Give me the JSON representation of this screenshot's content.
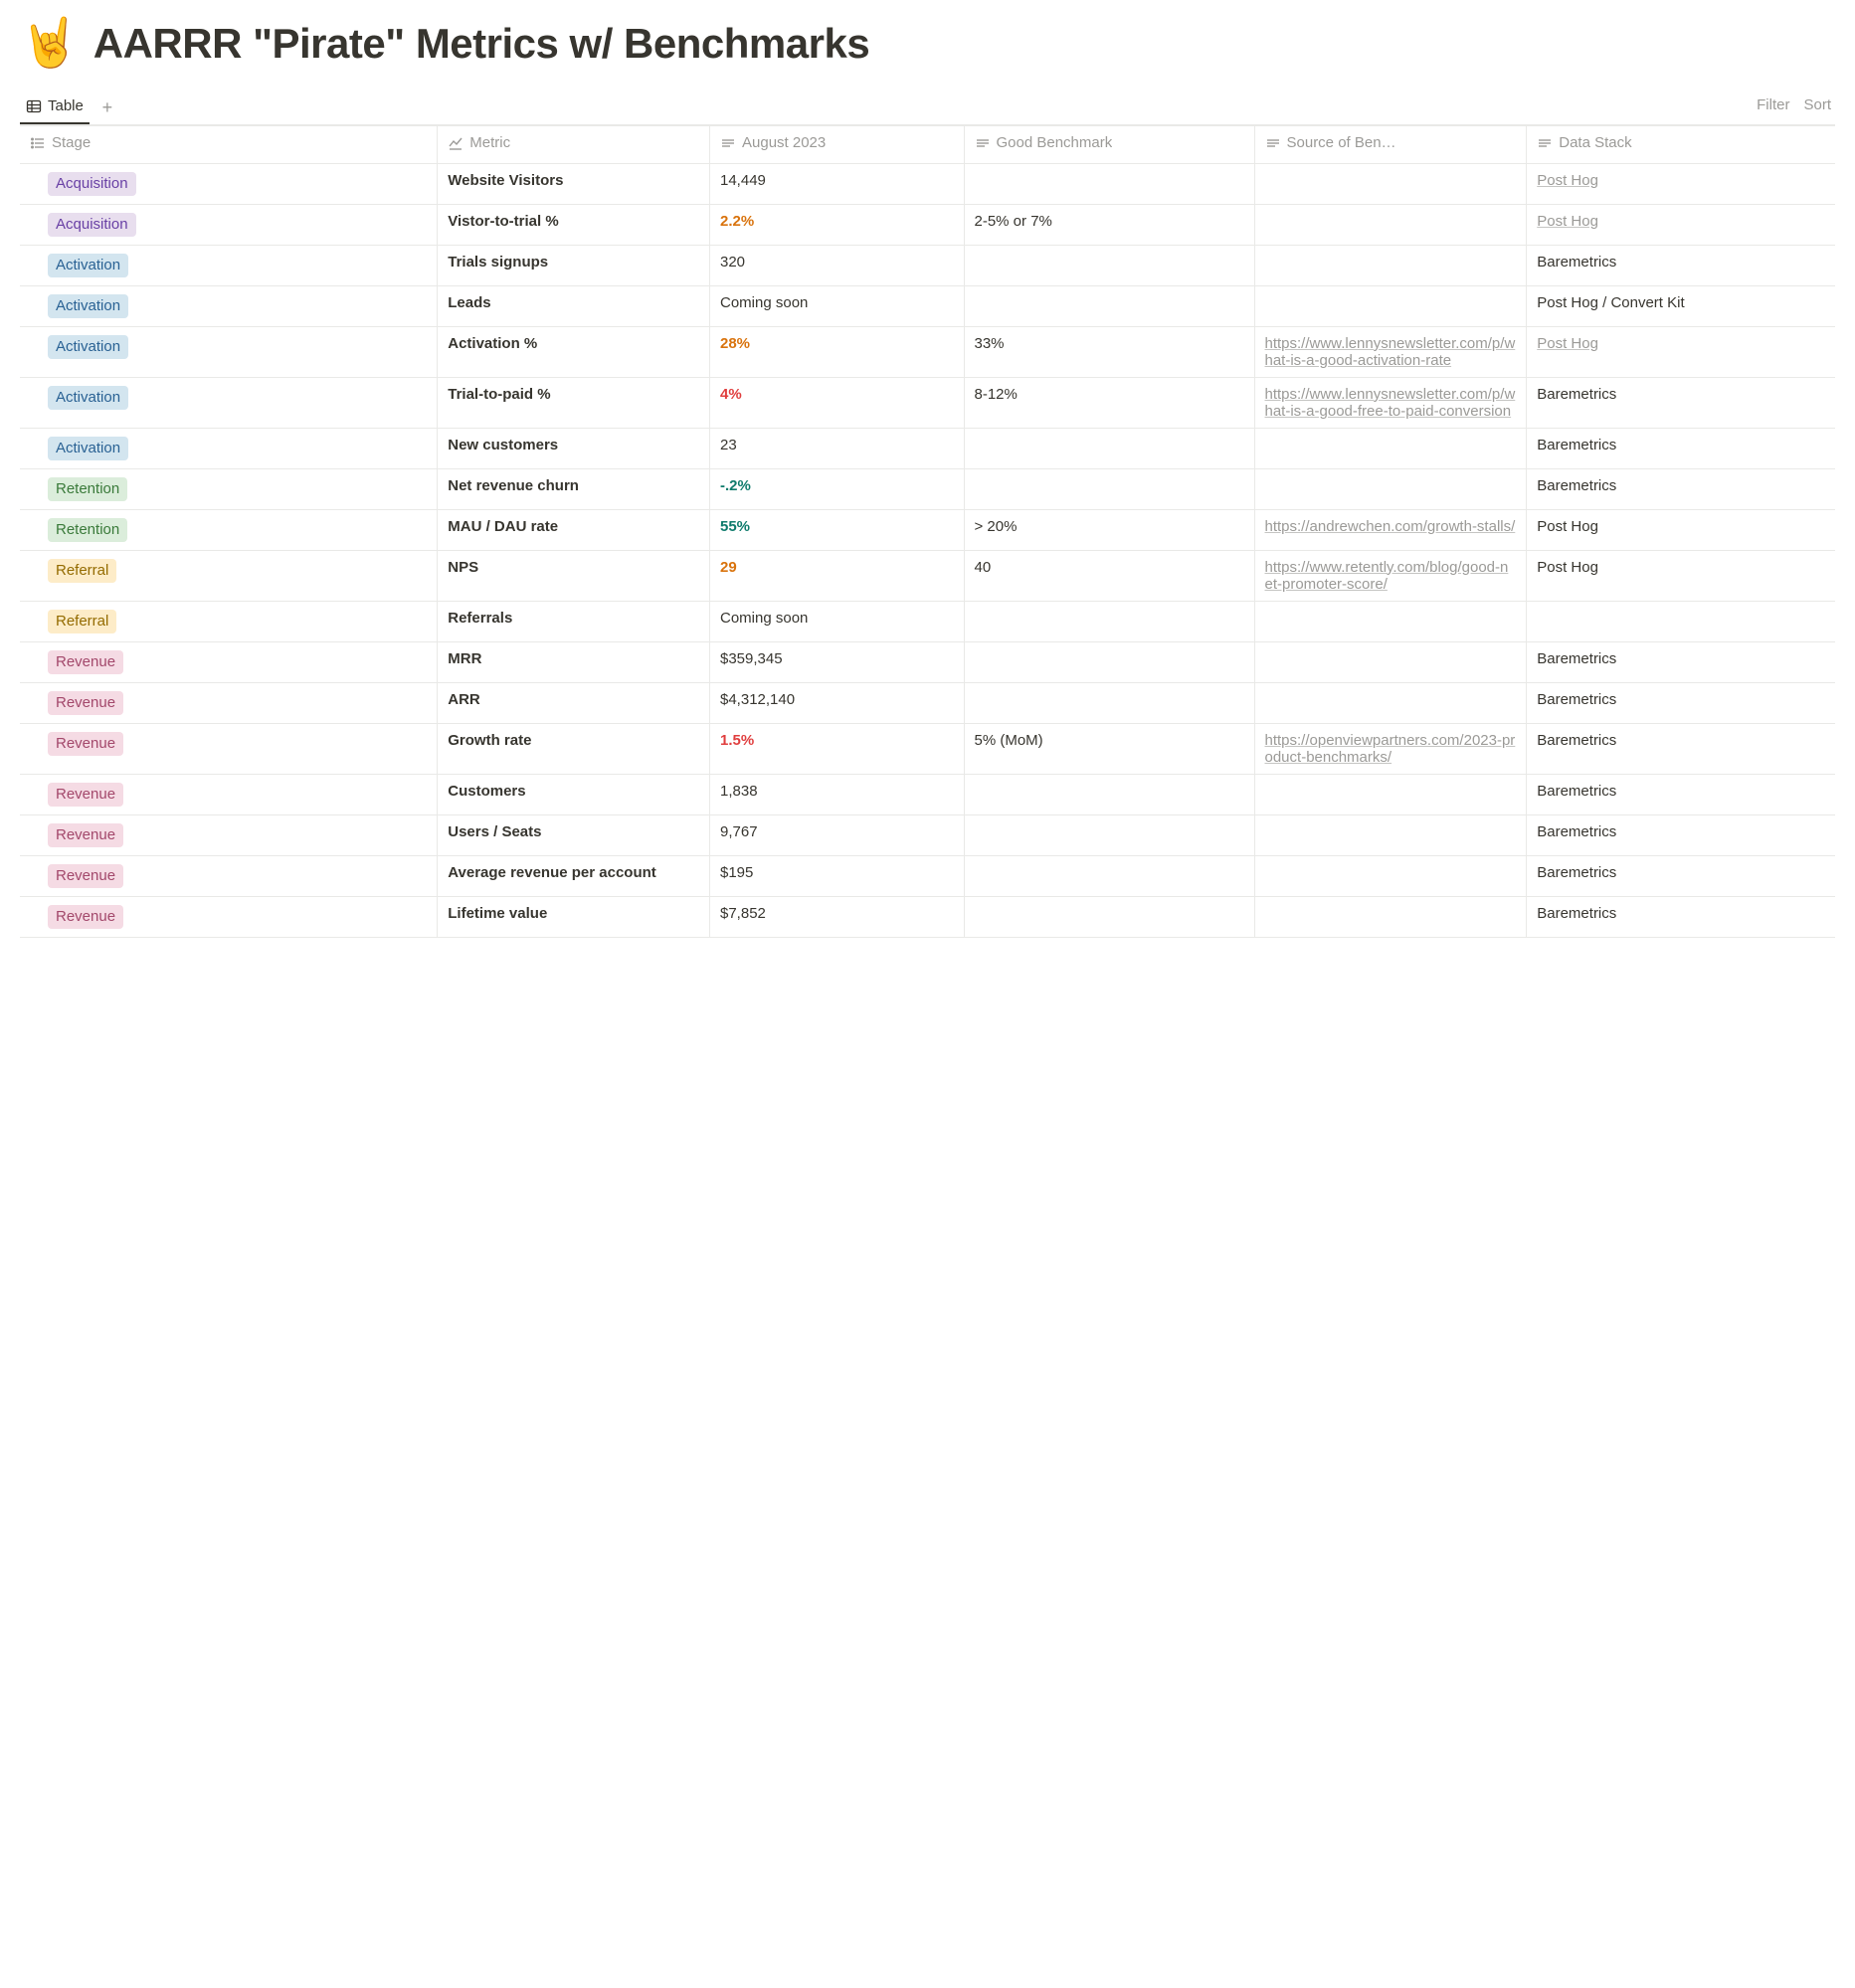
{
  "title": {
    "emoji": "🤘",
    "text": "AARRR \"Pirate\" Metrics w/ Benchmarks"
  },
  "tabs": {
    "active": "Table",
    "plusIcon": "+"
  },
  "toolbar": {
    "filter": "Filter",
    "sort": "Sort"
  },
  "columns": [
    {
      "key": "stage",
      "label": "Stage",
      "icon": "list"
    },
    {
      "key": "metric",
      "label": "Metric",
      "icon": "chart"
    },
    {
      "key": "value",
      "label": "August 2023",
      "icon": "text"
    },
    {
      "key": "benchmark",
      "label": "Good Benchmark",
      "icon": "text"
    },
    {
      "key": "source",
      "label": "Source of Ben…",
      "icon": "text"
    },
    {
      "key": "stack",
      "label": "Data Stack",
      "icon": "text"
    }
  ],
  "stageStyles": {
    "Acquisition": {
      "bg": "#e8deee",
      "fg": "#6940a5"
    },
    "Activation": {
      "bg": "#d3e5ef",
      "fg": "#2a6294"
    },
    "Retention": {
      "bg": "#dbeddb",
      "fg": "#3a7a3a"
    },
    "Referral": {
      "bg": "#fdecc8",
      "fg": "#946b00"
    },
    "Revenue": {
      "bg": "#f5dbe4",
      "fg": "#a3486b"
    }
  },
  "valueColors": {
    "orange": "#d9730d",
    "red": "#e03e3e",
    "green": "#0f7b6c"
  },
  "rows": [
    {
      "stage": "Acquisition",
      "metric": "Website Visitors",
      "value": "14,449",
      "valueStyle": null,
      "benchmark": "",
      "source": "",
      "stack": "Post Hog",
      "stackLink": true
    },
    {
      "stage": "Acquisition",
      "metric": "Vistor-to-trial %",
      "value": "2.2%",
      "valueStyle": "orange",
      "benchmark": "2-5% or 7%",
      "source": "",
      "stack": "Post Hog",
      "stackLink": true
    },
    {
      "stage": "Activation",
      "metric": "Trials signups",
      "value": "320",
      "valueStyle": null,
      "benchmark": "",
      "source": "",
      "stack": "Baremetrics",
      "stackLink": false
    },
    {
      "stage": "Activation",
      "metric": "Leads",
      "value": "Coming soon",
      "valueStyle": null,
      "benchmark": "",
      "source": "",
      "stack": "Post Hog / Convert Kit",
      "stackLink": false
    },
    {
      "stage": "Activation",
      "metric": "Activation %",
      "value": "28%",
      "valueStyle": "orange",
      "benchmark": "33%",
      "source": "https://www.lennysnewsletter.com/p/what-is-a-good-activation-rate",
      "stack": "Post Hog",
      "stackLink": true
    },
    {
      "stage": "Activation",
      "metric": "Trial-to-paid %",
      "value": "4%",
      "valueStyle": "red",
      "benchmark": "8-12%",
      "source": "https://www.lennysnewsletter.com/p/what-is-a-good-free-to-paid-conversion",
      "stack": "Baremetrics",
      "stackLink": false
    },
    {
      "stage": "Activation",
      "metric": "New customers",
      "value": "23",
      "valueStyle": null,
      "benchmark": "",
      "source": "",
      "stack": "Baremetrics",
      "stackLink": false
    },
    {
      "stage": "Retention",
      "metric": "Net revenue churn",
      "value": "-.2%",
      "valueStyle": "green",
      "benchmark": "",
      "source": "",
      "stack": "Baremetrics",
      "stackLink": false
    },
    {
      "stage": "Retention",
      "metric": "MAU / DAU rate",
      "value": "55%",
      "valueStyle": "green",
      "benchmark": "> 20%",
      "source": "https://andrewchen.com/growth-stalls/",
      "stack": "Post Hog",
      "stackLink": false
    },
    {
      "stage": "Referral",
      "metric": "NPS",
      "value": "29",
      "valueStyle": "orange",
      "benchmark": "40",
      "source": "https://www.retently.com/blog/good-net-promoter-score/",
      "stack": "Post Hog",
      "stackLink": false
    },
    {
      "stage": "Referral",
      "metric": "Referrals",
      "value": "Coming soon",
      "valueStyle": null,
      "benchmark": "",
      "source": "",
      "stack": "",
      "stackLink": false
    },
    {
      "stage": "Revenue",
      "metric": "MRR",
      "value": "$359,345",
      "valueStyle": null,
      "benchmark": "",
      "source": "",
      "stack": "Baremetrics",
      "stackLink": false
    },
    {
      "stage": "Revenue",
      "metric": "ARR",
      "value": "$4,312,140",
      "valueStyle": null,
      "benchmark": "",
      "source": "",
      "stack": "Baremetrics",
      "stackLink": false
    },
    {
      "stage": "Revenue",
      "metric": "Growth rate",
      "value": "1.5%",
      "valueStyle": "red",
      "benchmark": "5% (MoM)",
      "source": "https://openviewpartners.com/2023-product-benchmarks/",
      "stack": "Baremetrics",
      "stackLink": false
    },
    {
      "stage": "Revenue",
      "metric": "Customers",
      "value": "1,838",
      "valueStyle": null,
      "benchmark": "",
      "source": "",
      "stack": "Baremetrics",
      "stackLink": false
    },
    {
      "stage": "Revenue",
      "metric": "Users / Seats",
      "value": "9,767",
      "valueStyle": null,
      "benchmark": "",
      "source": "",
      "stack": "Baremetrics",
      "stackLink": false
    },
    {
      "stage": "Revenue",
      "metric": "Average revenue per account",
      "value": "$195",
      "valueStyle": null,
      "benchmark": "",
      "source": "",
      "stack": "Baremetrics",
      "stackLink": false
    },
    {
      "stage": "Revenue",
      "metric": "Lifetime value",
      "value": "$7,852",
      "valueStyle": null,
      "benchmark": "",
      "source": "",
      "stack": "Baremetrics",
      "stackLink": false
    }
  ]
}
